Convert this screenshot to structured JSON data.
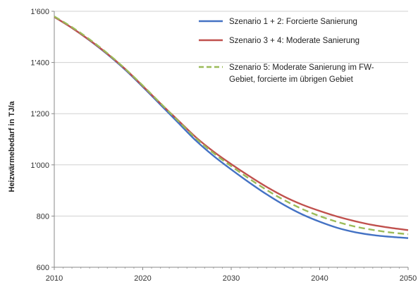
{
  "chart_data": {
    "type": "line",
    "ylabel": "Heizwärmebedarf in TJ/a",
    "xlim": [
      2010,
      2050
    ],
    "ylim": [
      600,
      1600
    ],
    "x_ticks": [
      2010,
      2020,
      2030,
      2040,
      2050
    ],
    "x_tick_labels": [
      "2010",
      "2020",
      "2030",
      "2040",
      "2050"
    ],
    "y_ticks": [
      600,
      800,
      1000,
      1200,
      1400,
      1600
    ],
    "y_tick_labels": [
      "600",
      "800",
      "1'000",
      "1'200",
      "1'400",
      "1'600"
    ],
    "grid": "horizontal",
    "legend_position": "top-right",
    "x": [
      2010,
      2012,
      2014,
      2016,
      2018,
      2020,
      2022,
      2024,
      2026,
      2028,
      2030,
      2032,
      2034,
      2036,
      2038,
      2040,
      2042,
      2044,
      2046,
      2048,
      2050
    ],
    "series": [
      {
        "name": "Szenario 1 + 2: Forcierte Sanierung",
        "color": "#4472c4",
        "style": "solid",
        "values": [
          1578,
          1535,
          1486,
          1432,
          1372,
          1305,
          1235,
          1165,
          1095,
          1035,
          982,
          932,
          885,
          843,
          807,
          778,
          754,
          737,
          726,
          719,
          714
        ]
      },
      {
        "name": "Szenario 3 + 4: Moderate Sanierung",
        "color": "#c0504d",
        "style": "solid",
        "values": [
          1578,
          1535,
          1487,
          1434,
          1375,
          1308,
          1240,
          1174,
          1108,
          1052,
          1003,
          957,
          914,
          876,
          845,
          820,
          798,
          780,
          765,
          754,
          745
        ]
      },
      {
        "name_lines": [
          "Szenario 5: Moderate Sanierung im FW-",
          "Gebiet, forcierte im übrigen Gebiet"
        ],
        "color": "#9bbb59",
        "style": "dashed",
        "values": [
          1580,
          1538,
          1490,
          1436,
          1376,
          1310,
          1241,
          1172,
          1104,
          1046,
          995,
          947,
          902,
          862,
          828,
          800,
          777,
          759,
          746,
          736,
          729
        ]
      }
    ]
  }
}
